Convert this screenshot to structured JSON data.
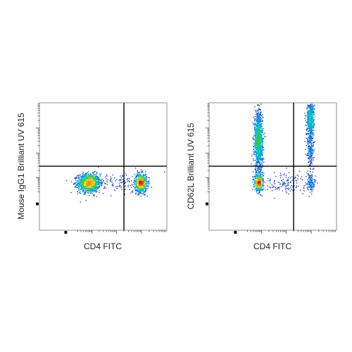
{
  "chart_data": [
    {
      "type": "scatter",
      "style": "density",
      "xlabel": "CD4 FITC",
      "ylabel": "Mouse IgG1 Brilliant UV 615",
      "xscale": "log",
      "yscale": "log",
      "xlim": [
        -100,
        100000
      ],
      "ylim": [
        -100,
        100000
      ],
      "quadrant_gate": {
        "x": 2000,
        "y": 300
      },
      "populations": [
        {
          "x": 70,
          "y": 60,
          "spread_x": 0.22,
          "spread_y": 0.18,
          "count": 1300
        },
        {
          "x": 9000,
          "y": 60,
          "spread_x": 0.12,
          "spread_y": 0.18,
          "count": 900
        },
        {
          "x": 1200,
          "y": 60,
          "spread_x": 0.5,
          "spread_y": 0.2,
          "count": 120
        }
      ]
    },
    {
      "type": "scatter",
      "style": "density",
      "xlabel": "CD4 FITC",
      "ylabel": "CD62L Brilliant UV 615",
      "xscale": "log",
      "yscale": "log",
      "xlim": [
        -100,
        100000
      ],
      "ylim": [
        -100,
        100000
      ],
      "quadrant_gate": {
        "x": 2000,
        "y": 300
      },
      "populations": [
        {
          "x": 70,
          "y": 60,
          "spread_x": 0.08,
          "spread_y": 0.15,
          "count": 700
        },
        {
          "x": 70,
          "y": 3000,
          "spread_x": 0.08,
          "spread_y": 0.6,
          "count": 1300
        },
        {
          "x": 9000,
          "y": 25000,
          "spread_x": 0.07,
          "spread_y": 0.35,
          "count": 500
        },
        {
          "x": 9000,
          "y": 2000,
          "spread_x": 0.07,
          "spread_y": 0.6,
          "count": 300
        },
        {
          "x": 9000,
          "y": 60,
          "spread_x": 0.07,
          "spread_y": 0.15,
          "count": 120
        },
        {
          "x": 800,
          "y": 60,
          "spread_x": 0.5,
          "spread_y": 0.2,
          "count": 150
        }
      ]
    }
  ]
}
